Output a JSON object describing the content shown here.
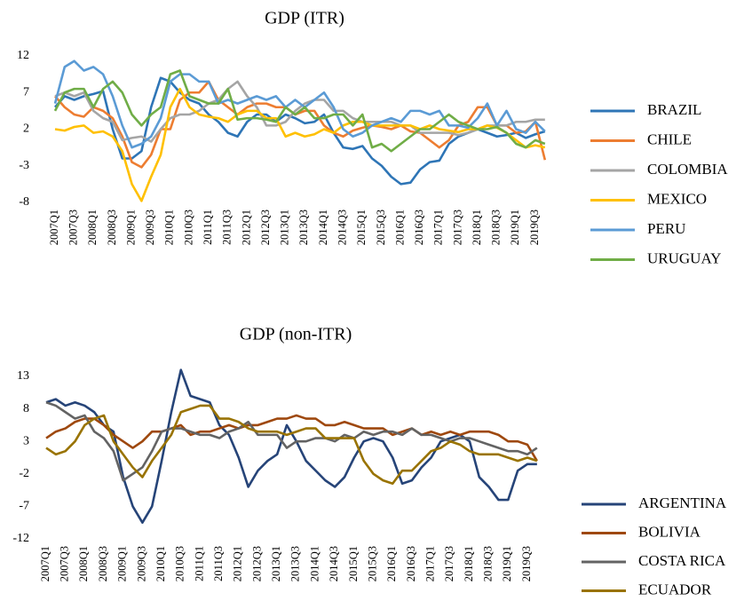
{
  "chart_data": [
    {
      "type": "line",
      "title": "GDP (ITR)",
      "categories": [
        "2007Q1",
        null,
        "2007Q3",
        null,
        "2008Q1",
        null,
        "2008Q3",
        null,
        "2009Q1",
        null,
        "2009Q3",
        null,
        "2010Q1",
        null,
        "2010Q3",
        null,
        "2011Q1",
        null,
        "2011Q3",
        null,
        "2012Q1",
        null,
        "2012Q3",
        null,
        "2013Q1",
        null,
        "2013Q3",
        null,
        "2014Q1",
        null,
        "2014Q3",
        null,
        "2015Q1",
        null,
        "2015Q3",
        null,
        "2016Q1",
        null,
        "2016Q3",
        null,
        "2017Q1",
        null,
        "2017Q3",
        null,
        "2018Q1",
        null,
        "2018Q3",
        null,
        "2019Q1",
        null,
        "2019Q3",
        null
      ],
      "ylim": [
        -8,
        12
      ],
      "yticks": [
        12,
        7,
        2,
        -3,
        -8
      ],
      "grid": false,
      "legend": "right",
      "series": [
        {
          "name": "BRAZIL",
          "color": "#2e75b6",
          "values": [
            5,
            6.5,
            6,
            6.5,
            6.8,
            7.2,
            2,
            -2,
            -2,
            -1,
            5,
            9,
            8.5,
            7,
            6,
            5.5,
            4,
            3,
            1.5,
            1,
            3,
            4,
            4,
            3,
            4,
            3.5,
            2.8,
            3,
            4,
            1.5,
            -0.5,
            -0.7,
            -0.3,
            -2,
            -3,
            -4.5,
            -5.5,
            -5.3,
            -3.5,
            -2.5,
            -2.3,
            0,
            1,
            1.5,
            2,
            1.5,
            1,
            1.2,
            1.5,
            0.8,
            1.3,
            1.7
          ]
        },
        {
          "name": "CHILE",
          "color": "#ed7d31",
          "values": [
            6.5,
            5,
            4,
            3.7,
            5,
            4.5,
            3.5,
            1,
            -2.5,
            -3.2,
            -1.5,
            2,
            2,
            6,
            7,
            7,
            8.5,
            6,
            5,
            4,
            5,
            5.5,
            5.5,
            5,
            5,
            4,
            4.5,
            4.5,
            2.5,
            1.5,
            1,
            1.8,
            2.2,
            2.5,
            2.3,
            2,
            2.5,
            1.7,
            1.5,
            0.5,
            -0.5,
            0.5,
            2.5,
            3,
            5,
            5,
            2.5,
            2.5,
            1.5,
            1.7,
            3,
            -2.2
          ]
        },
        {
          "name": "COLOMBIA",
          "color": "#a5a5a5",
          "values": [
            6.5,
            7,
            6.5,
            7,
            4.5,
            3.5,
            3,
            0.5,
            0.8,
            1,
            0.3,
            2,
            3.5,
            4,
            4,
            4.5,
            5.5,
            6,
            7.5,
            8.5,
            6.5,
            5,
            2.5,
            2.5,
            3,
            4.5,
            5.5,
            6,
            6,
            4.5,
            4.5,
            3.5,
            3,
            3,
            3,
            3,
            2.5,
            2.5,
            1.5,
            1.5,
            1.5,
            1.5,
            1.2,
            1.5,
            2,
            2.5,
            2.5,
            2.5,
            3,
            3,
            3.3,
            3.3
          ]
        },
        {
          "name": "MEXICO",
          "color": "#ffc000",
          "values": [
            2,
            1.8,
            2.3,
            2.5,
            1.5,
            1.7,
            1,
            -1,
            -5.5,
            -7.8,
            -4.5,
            -1.5,
            5,
            7.5,
            5,
            4,
            3.7,
            3.5,
            3,
            4,
            4.5,
            4.5,
            3.5,
            3.5,
            1,
            1.5,
            1,
            1.3,
            2,
            1.5,
            2.5,
            3,
            3,
            2.5,
            2.5,
            2.5,
            2.5,
            2.5,
            2,
            2.5,
            2,
            1.8,
            1.6,
            2,
            2,
            2.5,
            2.2,
            1.5,
            0.5,
            -0.5,
            -0.2,
            -0.5
          ]
        },
        {
          "name": "PERU",
          "color": "#5b9bd5",
          "values": [
            5.5,
            10.5,
            11.3,
            10,
            10.5,
            9.5,
            6.5,
            2.5,
            -0.5,
            0,
            1,
            3.5,
            8.5,
            9.5,
            9.5,
            8.5,
            8.5,
            5.5,
            6,
            5.5,
            6,
            6.5,
            6,
            6.5,
            5,
            6,
            5,
            6,
            7,
            5,
            2,
            1,
            1.5,
            2.5,
            3,
            3.5,
            3,
            4.5,
            4.5,
            4,
            4.5,
            2.5,
            2.5,
            2.2,
            3.5,
            5.5,
            2.5,
            4.5,
            2,
            1.5,
            3,
            1.7
          ]
        },
        {
          "name": "URUGUAY",
          "color": "#70ad47",
          "values": [
            4.5,
            7,
            7.5,
            7.5,
            5,
            7.5,
            8.5,
            7,
            4,
            2.5,
            4,
            5,
            9.5,
            10,
            6.5,
            6,
            5.5,
            5.5,
            7.5,
            3.3,
            3.5,
            3.5,
            3.3,
            3,
            5,
            4,
            5,
            3.5,
            3.5,
            4,
            4,
            2.5,
            4,
            -0.5,
            0,
            -1,
            0,
            1,
            2,
            2,
            3,
            4,
            3,
            2.5,
            2,
            2,
            2.3,
            1.5,
            0,
            -0.5,
            0.5,
            0
          ]
        }
      ]
    },
    {
      "type": "line",
      "title": "GDP (non-ITR)",
      "categories": [
        "2007Q1",
        null,
        "2007Q3",
        null,
        "2008Q1",
        null,
        "2008Q3",
        null,
        "2009Q1",
        null,
        "2009Q3",
        null,
        "2010Q1",
        null,
        "2010Q3",
        null,
        "2011Q1",
        null,
        "2011Q3",
        null,
        "2012Q1",
        null,
        "2012Q3",
        null,
        "2013Q1",
        null,
        "2013Q3",
        null,
        "2014Q1",
        null,
        "2014Q3",
        null,
        "2015Q1",
        null,
        "2015Q3",
        null,
        "2016Q1",
        null,
        "2016Q3",
        null,
        "2017Q1",
        null,
        "2017Q3",
        null,
        "2018Q1",
        null,
        "2018Q3",
        null,
        "2019Q1",
        null,
        "2019Q3",
        null
      ],
      "ylim": [
        -12,
        13
      ],
      "yticks": [
        13,
        8,
        3,
        -2,
        -7,
        -12
      ],
      "grid": false,
      "legend": "lower right",
      "series": [
        {
          "name": "ARGENTINA",
          "color": "#264478",
          "values": [
            9,
            9.5,
            8.5,
            9,
            8.5,
            7.5,
            5.5,
            4.5,
            -2.5,
            -7,
            -9.5,
            -7,
            0,
            7.5,
            14,
            10,
            9.5,
            9,
            5.5,
            4,
            0.5,
            -4,
            -1.5,
            0,
            1,
            5.5,
            3,
            0,
            -1.5,
            -3,
            -4,
            -2.5,
            0.5,
            3,
            3.5,
            3,
            0.5,
            -3.5,
            -3,
            -1,
            0.5,
            3,
            3.5,
            4,
            3,
            -2.5,
            -4,
            -6,
            -6,
            -1.5,
            -0.5,
            -0.5
          ]
        },
        {
          "name": "BOLIVIA",
          "color": "#9e480e",
          "values": [
            3.5,
            4.5,
            5,
            6,
            6.5,
            6.5,
            5.5,
            4,
            3,
            2,
            3,
            4.5,
            4.5,
            5,
            5.5,
            4,
            4.5,
            4.5,
            5,
            5.5,
            5,
            5.5,
            5.5,
            6,
            6.5,
            6.5,
            7,
            6.5,
            6.5,
            5.5,
            5.5,
            6,
            5.5,
            5,
            5,
            5,
            4,
            4.5,
            5,
            4,
            4.5,
            4,
            4.5,
            4,
            4.5,
            4.5,
            4.5,
            4,
            3,
            3,
            2.5,
            0
          ]
        },
        {
          "name": "COSTA RICA",
          "color": "#636363",
          "values": [
            9,
            8.5,
            7.5,
            6.5,
            7,
            4.5,
            3.5,
            1.5,
            -3,
            -2,
            -1,
            1.5,
            4.5,
            5,
            5,
            4.5,
            4,
            4,
            3.5,
            4.5,
            5,
            6,
            4,
            4,
            4,
            2,
            3,
            3,
            3.5,
            3.5,
            3,
            4,
            3.5,
            4.5,
            4,
            4.5,
            4.5,
            4,
            5,
            4,
            4,
            3.5,
            3,
            3.5,
            3.5,
            3,
            2.5,
            2,
            1.5,
            1.5,
            1,
            2
          ]
        },
        {
          "name": "ECUADOR",
          "color": "#997300",
          "values": [
            2,
            1,
            1.5,
            3,
            5.5,
            6.5,
            7,
            3,
            1,
            -1,
            -2.5,
            0,
            2,
            4,
            7.5,
            8,
            8.5,
            8.5,
            6.5,
            6.5,
            6,
            5,
            4.5,
            4.5,
            4.5,
            4,
            4.5,
            5,
            5,
            3.5,
            3.5,
            3.5,
            3.5,
            0,
            -2,
            -3,
            -3.5,
            -1.5,
            -1.5,
            0,
            1.5,
            2,
            3,
            2.5,
            1.5,
            1,
            1,
            1,
            0.5,
            0,
            0.5,
            0
          ]
        }
      ]
    }
  ]
}
